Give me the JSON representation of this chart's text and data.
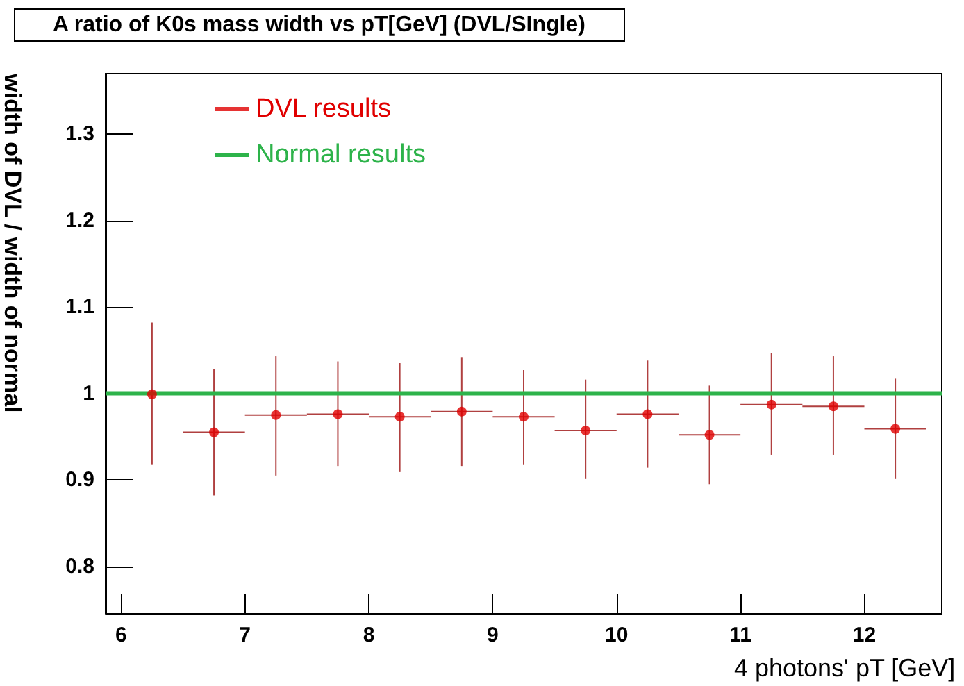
{
  "chart_data": {
    "type": "scatter",
    "title": "A ratio of K0s mass width vs pT[GeV] (DVL/SIngle)",
    "xlabel": "4 photons' pT [GeV]",
    "ylabel": "width of DVL / width of normal",
    "xlim": [
      5.875,
      12.625
    ],
    "xticks": [
      6,
      7,
      8,
      9,
      10,
      11,
      12
    ],
    "ylim": [
      0.745,
      1.37
    ],
    "yticks": [
      0.8,
      0.9,
      1,
      1.1,
      1.2,
      1.3
    ],
    "grid": false,
    "legend": "top left",
    "marker": "circle",
    "series": [
      {
        "name": "DVL results",
        "type": "scatter",
        "color": "#e00000",
        "x": [
          6.25,
          6.75,
          7.25,
          7.75,
          8.25,
          8.75,
          9.25,
          9.75,
          10.25,
          10.75,
          11.25,
          11.75,
          12.25
        ],
        "values": [
          0.999,
          0.955,
          0.975,
          0.976,
          0.973,
          0.979,
          0.973,
          0.957,
          0.976,
          0.952,
          0.987,
          0.985,
          0.959
        ],
        "errors": [
          [
            0.918,
            1.082
          ],
          [
            0.882,
            1.028
          ],
          [
            0.905,
            1.043
          ],
          [
            0.916,
            1.037
          ],
          [
            0.909,
            1.035
          ],
          [
            0.916,
            1.042
          ],
          [
            0.918,
            1.027
          ],
          [
            0.901,
            1.016
          ],
          [
            0.914,
            1.038
          ],
          [
            0.895,
            1.009
          ],
          [
            0.929,
            1.047
          ],
          [
            0.929,
            1.043
          ],
          [
            0.901,
            1.017
          ]
        ],
        "xerrors": [
          null,
          [
            6.5,
            7
          ],
          [
            7,
            7.5
          ],
          [
            7.5,
            8
          ],
          [
            8,
            8.5
          ],
          [
            8.5,
            9
          ],
          [
            9,
            9.5
          ],
          [
            9.5,
            10
          ],
          [
            10,
            10.5
          ],
          [
            10.5,
            11
          ],
          [
            11,
            11.5
          ],
          [
            11.5,
            12
          ],
          [
            12,
            12.5
          ]
        ]
      },
      {
        "name": "Normal results",
        "type": "line",
        "color": "#2db34a",
        "x": [
          5.875,
          12.625
        ],
        "values": [
          1,
          1
        ],
        "marker": "none"
      }
    ]
  }
}
